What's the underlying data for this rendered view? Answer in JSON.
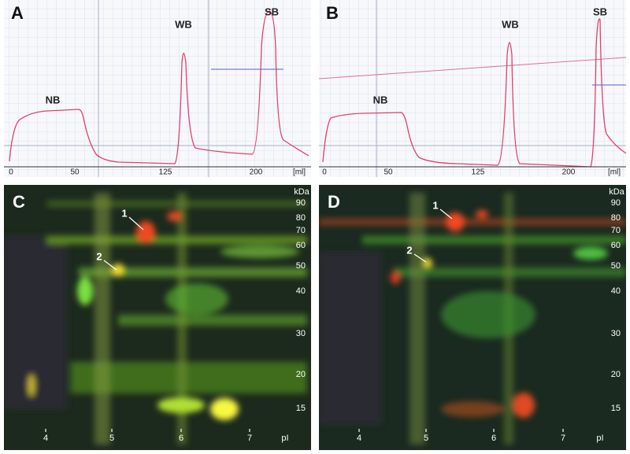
{
  "chromatograms": [
    {
      "letter": "A",
      "peaks": [
        "NB",
        "WB",
        "SB"
      ],
      "x_ticks": [
        "0",
        "50",
        "125",
        "200"
      ],
      "x_unit": "[ml]"
    },
    {
      "letter": "B",
      "peaks": [
        "NB",
        "WB",
        "SB"
      ],
      "x_ticks": [
        "0",
        "50",
        "125",
        "200"
      ],
      "x_unit": "[ml]"
    }
  ],
  "gels": [
    {
      "letter": "C",
      "mw_unit": "kDa",
      "mw_ticks": [
        "90",
        "80",
        "70",
        "60",
        "50",
        "40",
        "30",
        "20",
        "15"
      ],
      "spots": [
        "1",
        "2"
      ],
      "pi_ticks": [
        "4",
        "5",
        "6",
        "7"
      ],
      "pi_unit": "pI"
    },
    {
      "letter": "D",
      "mw_unit": "kDa",
      "mw_ticks": [
        "90",
        "80",
        "70",
        "60",
        "50",
        "40",
        "30",
        "20",
        "15"
      ],
      "spots": [
        "1",
        "2"
      ],
      "pi_ticks": [
        "4",
        "5",
        "6",
        "7"
      ],
      "pi_unit": "pI"
    }
  ]
}
